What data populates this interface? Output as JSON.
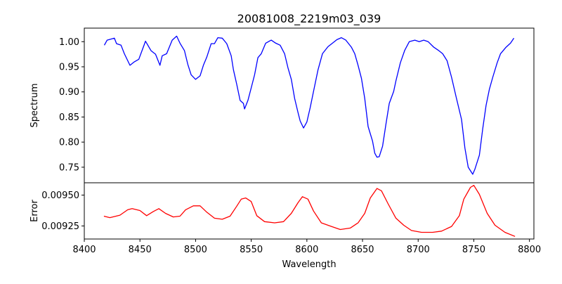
{
  "chart_data": [
    {
      "type": "line",
      "title": "20081008_2219m03_039",
      "xlabel": "",
      "ylabel": "Spectrum",
      "xlim": [
        8400,
        8804
      ],
      "ylim": [
        0.719,
        1.027
      ],
      "yticks": [
        "0.75",
        "0.80",
        "0.85",
        "0.90",
        "0.95",
        "1.00"
      ],
      "ytick_values": [
        0.75,
        0.8,
        0.85,
        0.9,
        0.95,
        1.0
      ],
      "grid": false,
      "series": [
        {
          "name": "Spectrum",
          "color": "#0000ff",
          "x": [
            8418,
            8420.5,
            8427,
            8429,
            8433,
            8436,
            8441,
            8445,
            8449,
            8452,
            8455,
            8460,
            8464,
            8468,
            8470,
            8474,
            8479,
            8483,
            8486,
            8490,
            8493,
            8496,
            8500,
            8504,
            8507,
            8510,
            8514,
            8517,
            8520,
            8524,
            8528,
            8532,
            8534,
            8537,
            8540,
            8543,
            8544,
            8547,
            8550,
            8553,
            8556,
            8559,
            8563,
            8568,
            8572,
            8576,
            8580,
            8583,
            8586,
            8589,
            8592,
            8594,
            8597,
            8600,
            8603,
            8606,
            8610,
            8614,
            8619,
            8623,
            8627,
            8631,
            8635,
            8640,
            8643,
            8646,
            8649,
            8652,
            8655,
            8659,
            8661,
            8663,
            8665,
            8668,
            8671,
            8674,
            8678,
            8680,
            8684,
            8688,
            8692,
            8697,
            8701,
            8705,
            8709,
            8714,
            8718,
            8722,
            8726,
            8730,
            8734,
            8739,
            8742,
            8745,
            8749,
            8751,
            8755,
            8758,
            8761,
            8764,
            8767,
            8771,
            8774,
            8779,
            8783,
            8786
          ],
          "y": [
            0.993,
            1.003,
            1.007,
            0.996,
            0.993,
            0.976,
            0.953,
            0.96,
            0.965,
            0.983,
            1.001,
            0.982,
            0.975,
            0.953,
            0.972,
            0.976,
            1.003,
            1.011,
            0.997,
            0.982,
            0.955,
            0.934,
            0.925,
            0.932,
            0.953,
            0.969,
            0.996,
            0.996,
            1.008,
            1.007,
            0.996,
            0.972,
            0.944,
            0.915,
            0.883,
            0.877,
            0.866,
            0.883,
            0.908,
            0.934,
            0.968,
            0.976,
            0.997,
            1.003,
            0.997,
            0.993,
            0.976,
            0.948,
            0.925,
            0.887,
            0.859,
            0.842,
            0.828,
            0.84,
            0.869,
            0.901,
            0.944,
            0.976,
            0.99,
            0.997,
            1.004,
            1.008,
            1.003,
            0.989,
            0.976,
            0.953,
            0.927,
            0.887,
            0.831,
            0.802,
            0.778,
            0.77,
            0.771,
            0.792,
            0.835,
            0.877,
            0.901,
            0.922,
            0.958,
            0.983,
            1.0,
            1.003,
            1.0,
            1.003,
            1.0,
            0.989,
            0.983,
            0.976,
            0.962,
            0.929,
            0.891,
            0.845,
            0.788,
            0.75,
            0.736,
            0.746,
            0.774,
            0.826,
            0.873,
            0.905,
            0.929,
            0.958,
            0.976,
            0.989,
            0.997,
            1.007
          ]
        }
      ]
    },
    {
      "type": "line",
      "title": "",
      "xlabel": "Wavelength",
      "ylabel": "Error",
      "xlim": [
        8400,
        8804
      ],
      "ylim": [
        0.009144,
        0.0096
      ],
      "xticks": [
        "8400",
        "8450",
        "8500",
        "8550",
        "8600",
        "8650",
        "8700",
        "8750",
        "8800"
      ],
      "xtick_values": [
        8400,
        8450,
        8500,
        8550,
        8600,
        8650,
        8700,
        8750,
        8800
      ],
      "yticks": [
        "0.00925",
        "0.00950"
      ],
      "ytick_values": [
        0.00925,
        0.0095
      ],
      "grid": false,
      "series": [
        {
          "name": "Error",
          "color": "#ff0000",
          "x": [
            8417.6,
            8423,
            8432,
            8439,
            8443,
            8450,
            8456,
            8462,
            8467,
            8473,
            8480,
            8486,
            8491,
            8498,
            8504,
            8510,
            8517,
            8524,
            8531,
            8537,
            8541,
            8545,
            8550,
            8555,
            8562,
            8571,
            8579,
            8586,
            8592,
            8596,
            8601,
            8606,
            8613,
            8622,
            8630,
            8639,
            8646,
            8652,
            8657,
            8663,
            8667,
            8673,
            8680,
            8687,
            8694,
            8703,
            8713,
            8721,
            8730,
            8737,
            8741,
            8747,
            8750,
            8755,
            8762,
            8769,
            8778,
            8787
          ],
          "y": [
            0.009329,
            0.009317,
            0.009337,
            0.009381,
            0.00939,
            0.009375,
            0.009333,
            0.009367,
            0.00939,
            0.009352,
            0.009323,
            0.009329,
            0.009381,
            0.009413,
            0.009413,
            0.009362,
            0.009313,
            0.009304,
            0.009329,
            0.00941,
            0.009467,
            0.009477,
            0.009448,
            0.009333,
            0.009285,
            0.009275,
            0.009285,
            0.009352,
            0.009438,
            0.009487,
            0.009467,
            0.009371,
            0.009275,
            0.009246,
            0.009221,
            0.009233,
            0.009275,
            0.009352,
            0.009477,
            0.009554,
            0.009535,
            0.009429,
            0.009313,
            0.009256,
            0.009213,
            0.009198,
            0.009198,
            0.009208,
            0.009246,
            0.009333,
            0.009467,
            0.009563,
            0.009579,
            0.009506,
            0.009352,
            0.009256,
            0.009198,
            0.009165
          ]
        }
      ]
    }
  ]
}
